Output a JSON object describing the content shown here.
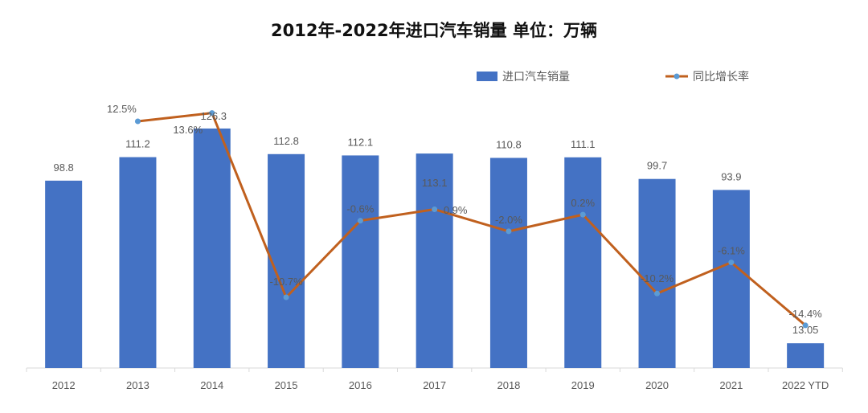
{
  "chart_data": {
    "type": "bar",
    "title": "2012年-2022年进口汽车销量  单位：万辆",
    "categories": [
      "2012",
      "2013",
      "2014",
      "2015",
      "2016",
      "2017",
      "2018",
      "2019",
      "2020",
      "2021",
      "2022 YTD"
    ],
    "series": [
      {
        "name": "进口汽车销量",
        "type": "bar",
        "color": "#4472C4",
        "values": [
          98.8,
          111.2,
          126.3,
          112.8,
          112.1,
          113.1,
          110.8,
          111.1,
          99.7,
          93.9,
          13.05
        ],
        "labels": [
          "98.8",
          "111.2",
          "126.3",
          "112.8",
          "112.1",
          "113.1",
          "110.8",
          "111.1",
          "99.7",
          "93.9",
          "13.05"
        ]
      },
      {
        "name": "同比增长率",
        "type": "line",
        "color": "#C0601E",
        "marker_color": "#5B9BD5",
        "values": [
          null,
          12.5,
          13.6,
          -10.7,
          -0.6,
          0.9,
          -2.0,
          0.2,
          -10.2,
          -6.1,
          -14.4
        ],
        "labels": [
          "",
          "12.5%",
          "13.6%",
          "-10.7%",
          "-0.6%",
          "0.9%",
          "-2.0%",
          "0.2%",
          "-10.2%",
          "-6.1%",
          "-14.4%"
        ]
      }
    ],
    "legend": "top-right",
    "grid": false
  }
}
